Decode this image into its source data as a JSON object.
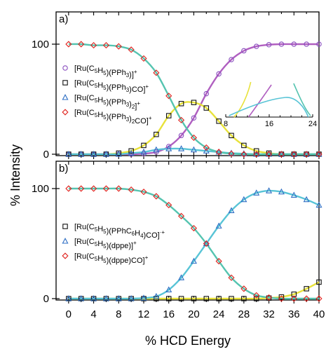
{
  "chart_data": [
    {
      "panel": "a)",
      "type": "line",
      "y_tick_labels": [
        "0",
        "100"
      ],
      "xlim": [
        -2,
        40
      ],
      "ylim": [
        0,
        105
      ],
      "series": [
        {
          "name": "[Ru(C5H5)(PPh3)]+",
          "marker": "circle",
          "marker_color": "#8a4fbf",
          "line_color": "#b05fc0",
          "x": [
            0,
            2,
            4,
            6,
            8,
            10,
            12,
            14,
            16,
            18,
            20,
            22,
            24,
            26,
            28,
            30,
            32,
            34,
            36,
            38,
            40
          ],
          "y": [
            0,
            0,
            0,
            0,
            0,
            0,
            0.5,
            2,
            7,
            17,
            33,
            55,
            73,
            86,
            94,
            98,
            99.5,
            100,
            100,
            100,
            100
          ]
        },
        {
          "name": "[Ru(C5H5)(PPh3)CO]+",
          "marker": "square",
          "marker_color": "#111111",
          "line_color": "#e8e23a",
          "x": [
            0,
            2,
            4,
            6,
            8,
            10,
            12,
            14,
            16,
            18,
            20,
            22,
            24,
            26,
            28,
            30,
            32,
            34,
            36,
            38,
            40
          ],
          "y": [
            0,
            0,
            0,
            0,
            1,
            3,
            8,
            18,
            35,
            46,
            47,
            42,
            30,
            17,
            8,
            3,
            1,
            0,
            0,
            0,
            0
          ]
        },
        {
          "name": "[Ru(C5H5)(PPh3)2]+",
          "marker": "triangle",
          "marker_color": "#2f6fc4",
          "line_color": "#58c4d6",
          "x": [
            0,
            2,
            4,
            6,
            8,
            10,
            12,
            14,
            16,
            18,
            20,
            22,
            24,
            26,
            28,
            30,
            32,
            34,
            36,
            38,
            40
          ],
          "y": [
            0,
            0,
            0,
            0,
            0,
            1,
            2,
            4,
            5,
            5,
            4,
            3,
            2,
            1,
            0.5,
            0,
            0,
            0,
            0,
            0,
            0
          ]
        },
        {
          "name": "[Ru(C5H5)(PPh3)2CO]+",
          "marker": "diamond",
          "marker_color": "#e0201b",
          "line_color": "#55c4b0",
          "x": [
            0,
            2,
            4,
            6,
            8,
            10,
            12,
            14,
            16,
            18,
            20,
            22,
            24,
            26,
            28,
            30,
            32,
            34,
            36,
            38,
            40
          ],
          "y": [
            100,
            100,
            99,
            99,
            98,
            95,
            87,
            74,
            53,
            31,
            15,
            6,
            2,
            0.5,
            0,
            0,
            0,
            0,
            0,
            0,
            0
          ]
        }
      ],
      "inset": {
        "x_tick_labels": [
          "8",
          "16",
          "24"
        ],
        "xlim": [
          8,
          24
        ]
      }
    },
    {
      "panel": "b)",
      "type": "line",
      "y_tick_labels": [
        "0",
        "100"
      ],
      "xlim": [
        -2,
        40
      ],
      "ylim": [
        0,
        105
      ],
      "series": [
        {
          "name": "[Ru(C5H5)(PPhC6H4)CO]·+",
          "marker": "square",
          "marker_color": "#111111",
          "line_color": "#e8e23a",
          "x": [
            0,
            2,
            4,
            6,
            8,
            10,
            12,
            14,
            16,
            18,
            20,
            22,
            24,
            26,
            28,
            30,
            32,
            34,
            36,
            38,
            40
          ],
          "y": [
            0,
            0,
            0,
            0,
            0,
            0,
            0,
            0,
            0,
            0,
            0,
            0,
            0,
            0,
            0,
            0,
            0.5,
            1.5,
            4,
            9,
            15
          ]
        },
        {
          "name": "[Ru(C5H5)(dppe)]+",
          "marker": "triangle",
          "marker_color": "#2f6fc4",
          "line_color": "#58c4d6",
          "x": [
            0,
            2,
            4,
            6,
            8,
            10,
            12,
            14,
            16,
            18,
            20,
            22,
            24,
            26,
            28,
            30,
            32,
            34,
            36,
            38,
            40
          ],
          "y": [
            0,
            0,
            0,
            0,
            0,
            0,
            0.5,
            2,
            8,
            19,
            34,
            50,
            66,
            80,
            90,
            96,
            98,
            97,
            94,
            90,
            85
          ]
        },
        {
          "name": "[Ru(C5H5)(dppe)CO]+",
          "marker": "diamond",
          "marker_color": "#e0201b",
          "line_color": "#55c4b0",
          "x": [
            0,
            2,
            4,
            6,
            8,
            10,
            12,
            14,
            16,
            18,
            20,
            22,
            24,
            26,
            28,
            30,
            32,
            34,
            36,
            38,
            40
          ],
          "y": [
            100,
            100,
            100,
            100,
            100,
            99,
            97,
            93,
            85,
            75,
            64,
            50,
            34,
            19,
            9,
            3,
            1,
            0,
            0,
            0,
            0
          ]
        }
      ]
    }
  ],
  "x_axis": {
    "label": "% HCD Energy",
    "tick_labels": [
      "0",
      "4",
      "8",
      "12",
      "16",
      "20",
      "24",
      "28",
      "32",
      "36",
      "40"
    ]
  },
  "y_axis": {
    "label": "% Intensity"
  }
}
